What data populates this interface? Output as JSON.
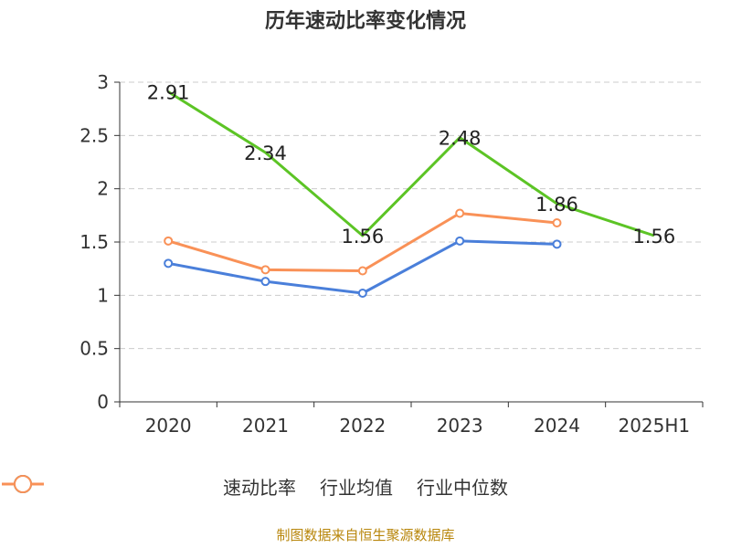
{
  "title": "历年速动比率变化情况",
  "source": "制图数据来自恒生聚源数据库",
  "chart_data": {
    "type": "line",
    "categories": [
      "2020",
      "2021",
      "2022",
      "2023",
      "2024",
      "2025H1"
    ],
    "ylim": [
      0,
      3
    ],
    "yticks": [
      "0",
      "0.5",
      "1",
      "1.5",
      "2",
      "2.5",
      "3"
    ],
    "grid": true,
    "legend_position": "bottom",
    "series": [
      {
        "name": "速动比率",
        "color": "#5cc425",
        "values": [
          2.91,
          2.34,
          1.56,
          2.48,
          1.86,
          1.56
        ],
        "data_labels": [
          "2.91",
          "2.34",
          "1.56",
          "2.48",
          "1.86",
          "1.56"
        ]
      },
      {
        "name": "行业均值",
        "color": "#4a7fda",
        "values": [
          1.3,
          1.13,
          1.02,
          1.51,
          1.48,
          null
        ]
      },
      {
        "name": "行业中位数",
        "color": "#f99157",
        "values": [
          1.51,
          1.24,
          1.23,
          1.77,
          1.68,
          null
        ]
      }
    ]
  }
}
